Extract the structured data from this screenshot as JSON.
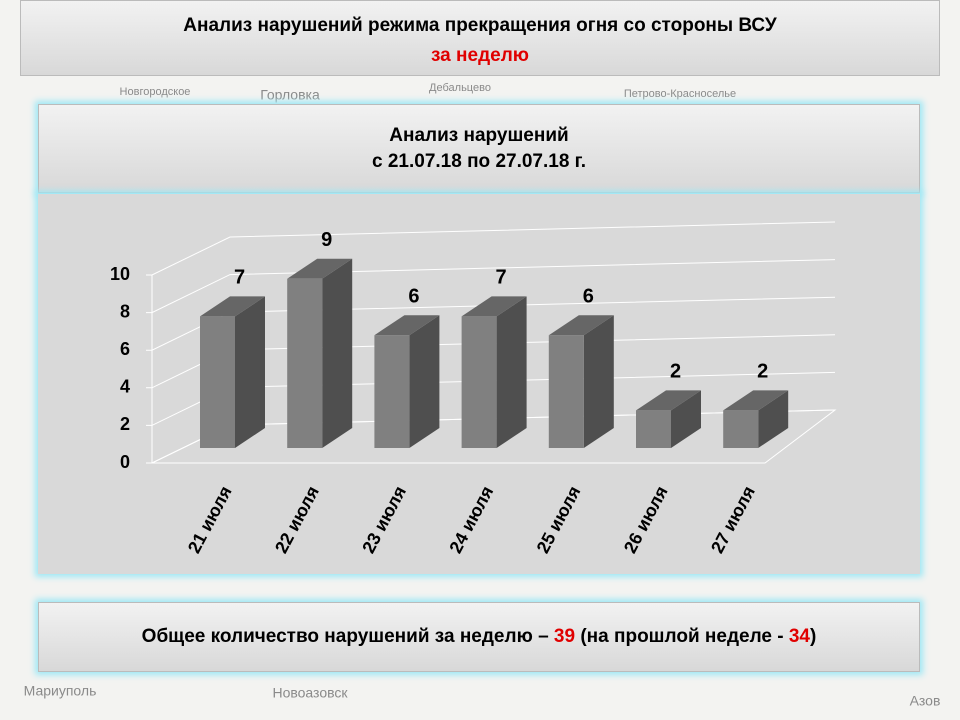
{
  "header": {
    "title": "Анализ нарушений режима прекращения огня со стороны ВСУ",
    "subtitle": "за неделю"
  },
  "map_labels": [
    "Новгородское",
    "Горловка",
    "Дебальцево",
    "Петрово-Красноселье",
    "Мариуполь",
    "Новоазовск",
    "Азов"
  ],
  "chart_data": {
    "type": "bar",
    "title": "Анализ нарушений",
    "subtitle": "с 21.07.18 по 27.07.18 г.",
    "categories": [
      "21 июля",
      "22 июля",
      "23 июля",
      "24 июля",
      "25 июля",
      "26 июля",
      "27 июля"
    ],
    "values": [
      7,
      9,
      6,
      7,
      6,
      2,
      2
    ],
    "color": "#808080",
    "ylim": [
      0,
      10
    ],
    "yticks": [
      0,
      2,
      4,
      6,
      8,
      10
    ],
    "grid": true
  },
  "footer": {
    "text_before": "Общее количество нарушений за неделю – ",
    "current": 39,
    "text_middle": " (на прошлой неделе - ",
    "previous": 34,
    "text_after": ")"
  }
}
